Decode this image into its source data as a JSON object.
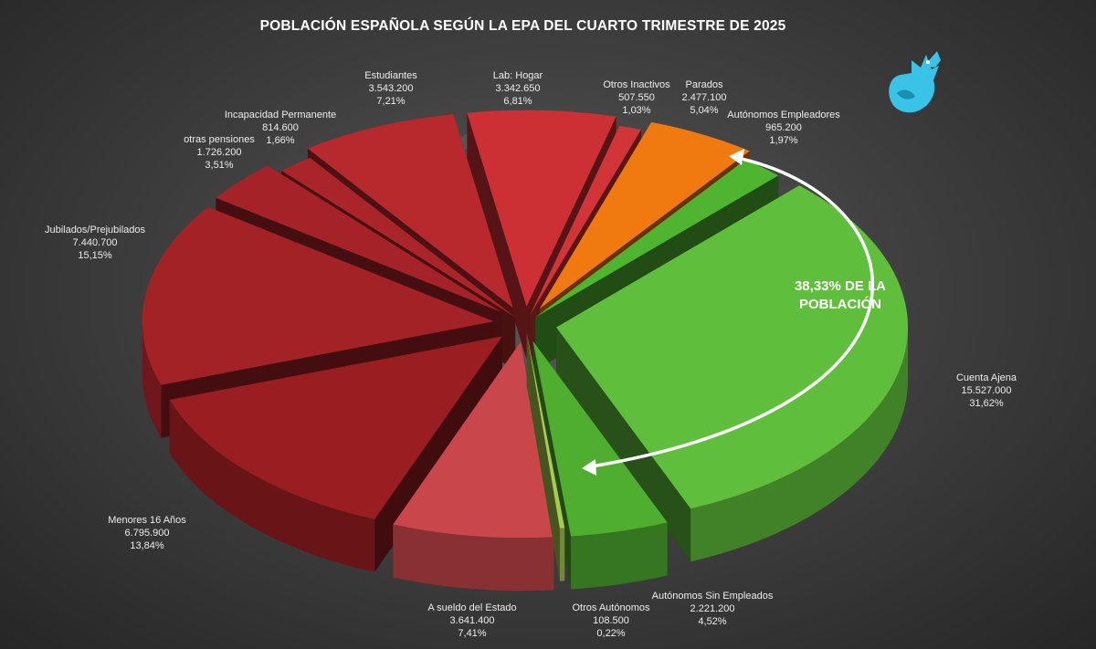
{
  "title": "POBLACIÓN ESPAÑOLA SEGÚN LA EPA DEL CUARTO TRIMESTRE DE 2025",
  "logo": "griffin-logo",
  "callout": {
    "line1": "38,33% DE LA",
    "line2": "POBLACIÓN"
  },
  "colors": {
    "background": "#3f3f3f",
    "red": "#b3262b",
    "green": "#56b538",
    "orange": "#f07a10",
    "logo": "#39c3e6"
  },
  "chart_data": {
    "type": "pie",
    "title": "POBLACIÓN ESPAÑOLA SEGÚN LA EPA DEL CUARTO TRIMESTRE DE 2025",
    "exploded": true,
    "three_d": true,
    "slices": [
      {
        "label": "Lab: Hogar",
        "value": 3342650,
        "value_label": "3.342.650",
        "percent": 6.81,
        "percent_label": "6,81%",
        "color": "#cc3034"
      },
      {
        "label": "Otros Inactivos",
        "value": 507550,
        "value_label": "507.550",
        "percent": 1.03,
        "percent_label": "1,03%",
        "color": "#d23538"
      },
      {
        "label": "Parados",
        "value": 2477100,
        "value_label": "2.477.100",
        "percent": 5.04,
        "percent_label": "5,04%",
        "color": "#f07a10"
      },
      {
        "label": "Autónomos Empleadores",
        "value": 965200,
        "value_label": "965.200",
        "percent": 1.97,
        "percent_label": "1,97%",
        "color": "#4fb530"
      },
      {
        "label": "Cuenta Ajena",
        "value": 15527000,
        "value_label": "15.527.000",
        "percent": 31.62,
        "percent_label": "31,62%",
        "color": "#5fbe3b"
      },
      {
        "label": "Autónomos Sin Empleados",
        "value": 2221200,
        "value_label": "2.221.200",
        "percent": 4.52,
        "percent_label": "4,52%",
        "color": "#4fae30"
      },
      {
        "label": "Otros Autónomos",
        "value": 108500,
        "value_label": "108.500",
        "percent": 0.22,
        "percent_label": "0,22%",
        "color": "#a7cb4a"
      },
      {
        "label": "A sueldo del Estado",
        "value": 3641400,
        "value_label": "3.641.400",
        "percent": 7.41,
        "percent_label": "7,41%",
        "color": "#c9474b"
      },
      {
        "label": "Menores 16 Años",
        "value": 6795900,
        "value_label": "6.795.900",
        "percent": 13.84,
        "percent_label": "13,84%",
        "color": "#9a1d21"
      },
      {
        "label": "Jubilados/Prejubilados",
        "value": 7440700,
        "value_label": "7.440.700",
        "percent": 15.15,
        "percent_label": "15,15%",
        "color": "#a32226"
      },
      {
        "label": "otras pensiones",
        "value": 1726200,
        "value_label": "1.726.200",
        "percent": 3.51,
        "percent_label": "3,51%",
        "color": "#a52328"
      },
      {
        "label": "Incapacidad Permanente",
        "value": 814600,
        "value_label": "814.600",
        "percent": 1.66,
        "percent_label": "1,66%",
        "color": "#aa2529"
      },
      {
        "label": "Estudiantes",
        "value": 3543200,
        "value_label": "3.543.200",
        "percent": 7.21,
        "percent_label": "7,21%",
        "color": "#b7292d"
      }
    ]
  }
}
